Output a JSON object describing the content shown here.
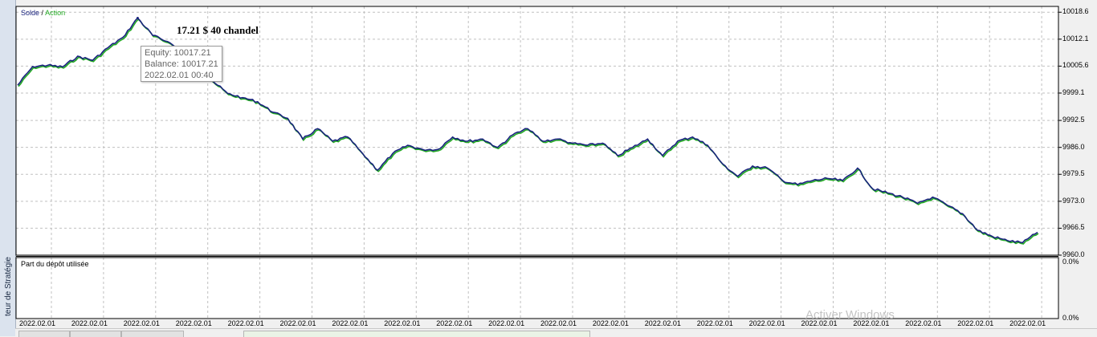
{
  "sidebar": {
    "label": "teur de Stratégie"
  },
  "legend": {
    "solde": "Solde",
    "separator": "/",
    "action": "Action"
  },
  "colors": {
    "balance_line": "#1a237e",
    "equity_line": "#22aa22",
    "grid": "#c0c0c0",
    "chart_bg": "#ffffff"
  },
  "annotation": "17.21 $ 40 chandel",
  "tooltip": {
    "equity": "Equity: 10017.21",
    "balance": "Balance: 10017.21",
    "time": "2022.02.01 00:40"
  },
  "subchart": {
    "title": "Part du dépôt utilisée",
    "top_tick": "0.0%",
    "bottom_tick": "0.0%"
  },
  "watermark": "Activer Windows",
  "chart_data": {
    "type": "line",
    "ylim": [
      9960.0,
      10020.0
    ],
    "yticks": [
      "10018.6",
      "10012.1",
      "10005.6",
      "9999.1",
      "9992.5",
      "9986.0",
      "9979.5",
      "9973.0",
      "9966.5",
      "9960.0"
    ],
    "xtick_labels": [
      "2022.02.01",
      "2022.02.01",
      "2022.02.01",
      "2022.02.01",
      "2022.02.01",
      "2022.02.01",
      "2022.02.01",
      "2022.02.01",
      "2022.02.01",
      "2022.02.01",
      "2022.02.01",
      "2022.02.01",
      "2022.02.01",
      "2022.02.01",
      "2022.02.01",
      "2022.02.01",
      "2022.02.01",
      "2022.02.01",
      "2022.02.01",
      "2022.02.01"
    ],
    "series": [
      {
        "name": "Solde",
        "values": [
          10001.0,
          10005.5,
          10005.8,
          10005.4,
          10008.0,
          10007.0,
          10010.0,
          10012.5,
          10017.2,
          10013.0,
          10011.5,
          10009.0,
          10006.0,
          10002.0,
          9999.0,
          9998.0,
          9997.0,
          9994.5,
          9993.0,
          9988.0,
          9990.5,
          9987.5,
          9988.5,
          9984.5,
          9980.5,
          9984.5,
          9986.5,
          9985.5,
          9985.5,
          9988.5,
          9987.5,
          9988.0,
          9986.0,
          9989.0,
          9990.5,
          9987.5,
          9988.0,
          9987.0,
          9986.5,
          9987.0,
          9984.0,
          9986.0,
          9988.0,
          9984.0,
          9987.5,
          9988.5,
          9986.5,
          9982.0,
          9979.0,
          9981.5,
          9981.0,
          9978.0,
          9977.0,
          9978.0,
          9978.5,
          9978.0,
          9981.0,
          9976.0,
          9975.0,
          9974.0,
          9972.5,
          9974.0,
          9972.0,
          9970.0,
          9966.0,
          9964.5,
          9963.5,
          9963.0,
          9965.5
        ]
      }
    ]
  }
}
